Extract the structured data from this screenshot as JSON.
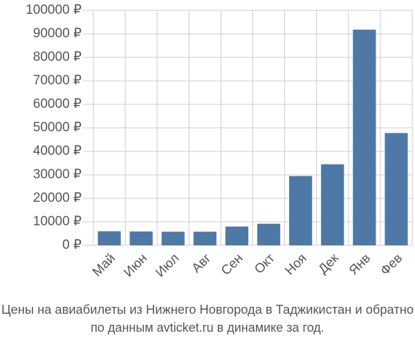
{
  "chart_data": {
    "type": "bar",
    "title": "Цены на авиабилеты из Нижнего Новгорода в Таджикистан и обратно",
    "subtitle": "по данным avticket.ru в динамике за год.",
    "categories": [
      "Май",
      "Июн",
      "Июл",
      "Авг",
      "Сен",
      "Окт",
      "Ноя",
      "Дек",
      "Янв",
      "Фев"
    ],
    "values": [
      6000,
      5900,
      5800,
      5800,
      8000,
      9200,
      29500,
      34500,
      91800,
      47800
    ],
    "color": "#4e79a7",
    "ylim": [
      0,
      100000
    ],
    "yticks": [
      {
        "value": 0,
        "label": "0 ₽"
      },
      {
        "value": 10000,
        "label": "10000 ₽"
      },
      {
        "value": 20000,
        "label": "20000 ₽"
      },
      {
        "value": 30000,
        "label": "30000 ₽"
      },
      {
        "value": 40000,
        "label": "40000 ₽"
      },
      {
        "value": 50000,
        "label": "50000 ₽"
      },
      {
        "value": 60000,
        "label": "60000 ₽"
      },
      {
        "value": 70000,
        "label": "70000 ₽"
      },
      {
        "value": 80000,
        "label": "80000 ₽"
      },
      {
        "value": 90000,
        "label": "90000 ₽"
      },
      {
        "value": 100000,
        "label": "100000 ₽"
      }
    ],
    "grid": true
  }
}
